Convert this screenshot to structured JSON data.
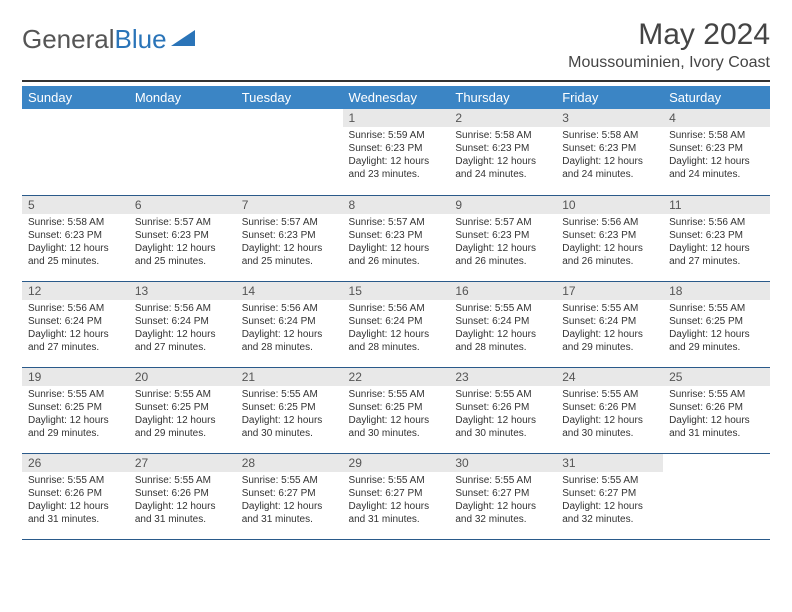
{
  "logo": {
    "text1": "General",
    "text2": "Blue"
  },
  "title": "May 2024",
  "location": "Moussouminien, Ivory Coast",
  "colors": {
    "header_bg": "#3b85c5",
    "daynum_bg": "#e8e8e8",
    "row_border": "#2a5a8a",
    "logo_blue": "#2a74b8"
  },
  "days": [
    "Sunday",
    "Monday",
    "Tuesday",
    "Wednesday",
    "Thursday",
    "Friday",
    "Saturday"
  ],
  "weeks": [
    [
      null,
      null,
      null,
      {
        "n": "1",
        "sr": "5:59 AM",
        "ss": "6:23 PM",
        "dl": "12 hours and 23 minutes."
      },
      {
        "n": "2",
        "sr": "5:58 AM",
        "ss": "6:23 PM",
        "dl": "12 hours and 24 minutes."
      },
      {
        "n": "3",
        "sr": "5:58 AM",
        "ss": "6:23 PM",
        "dl": "12 hours and 24 minutes."
      },
      {
        "n": "4",
        "sr": "5:58 AM",
        "ss": "6:23 PM",
        "dl": "12 hours and 24 minutes."
      }
    ],
    [
      {
        "n": "5",
        "sr": "5:58 AM",
        "ss": "6:23 PM",
        "dl": "12 hours and 25 minutes."
      },
      {
        "n": "6",
        "sr": "5:57 AM",
        "ss": "6:23 PM",
        "dl": "12 hours and 25 minutes."
      },
      {
        "n": "7",
        "sr": "5:57 AM",
        "ss": "6:23 PM",
        "dl": "12 hours and 25 minutes."
      },
      {
        "n": "8",
        "sr": "5:57 AM",
        "ss": "6:23 PM",
        "dl": "12 hours and 26 minutes."
      },
      {
        "n": "9",
        "sr": "5:57 AM",
        "ss": "6:23 PM",
        "dl": "12 hours and 26 minutes."
      },
      {
        "n": "10",
        "sr": "5:56 AM",
        "ss": "6:23 PM",
        "dl": "12 hours and 26 minutes."
      },
      {
        "n": "11",
        "sr": "5:56 AM",
        "ss": "6:23 PM",
        "dl": "12 hours and 27 minutes."
      }
    ],
    [
      {
        "n": "12",
        "sr": "5:56 AM",
        "ss": "6:24 PM",
        "dl": "12 hours and 27 minutes."
      },
      {
        "n": "13",
        "sr": "5:56 AM",
        "ss": "6:24 PM",
        "dl": "12 hours and 27 minutes."
      },
      {
        "n": "14",
        "sr": "5:56 AM",
        "ss": "6:24 PM",
        "dl": "12 hours and 28 minutes."
      },
      {
        "n": "15",
        "sr": "5:56 AM",
        "ss": "6:24 PM",
        "dl": "12 hours and 28 minutes."
      },
      {
        "n": "16",
        "sr": "5:55 AM",
        "ss": "6:24 PM",
        "dl": "12 hours and 28 minutes."
      },
      {
        "n": "17",
        "sr": "5:55 AM",
        "ss": "6:24 PM",
        "dl": "12 hours and 29 minutes."
      },
      {
        "n": "18",
        "sr": "5:55 AM",
        "ss": "6:25 PM",
        "dl": "12 hours and 29 minutes."
      }
    ],
    [
      {
        "n": "19",
        "sr": "5:55 AM",
        "ss": "6:25 PM",
        "dl": "12 hours and 29 minutes."
      },
      {
        "n": "20",
        "sr": "5:55 AM",
        "ss": "6:25 PM",
        "dl": "12 hours and 29 minutes."
      },
      {
        "n": "21",
        "sr": "5:55 AM",
        "ss": "6:25 PM",
        "dl": "12 hours and 30 minutes."
      },
      {
        "n": "22",
        "sr": "5:55 AM",
        "ss": "6:25 PM",
        "dl": "12 hours and 30 minutes."
      },
      {
        "n": "23",
        "sr": "5:55 AM",
        "ss": "6:26 PM",
        "dl": "12 hours and 30 minutes."
      },
      {
        "n": "24",
        "sr": "5:55 AM",
        "ss": "6:26 PM",
        "dl": "12 hours and 30 minutes."
      },
      {
        "n": "25",
        "sr": "5:55 AM",
        "ss": "6:26 PM",
        "dl": "12 hours and 31 minutes."
      }
    ],
    [
      {
        "n": "26",
        "sr": "5:55 AM",
        "ss": "6:26 PM",
        "dl": "12 hours and 31 minutes."
      },
      {
        "n": "27",
        "sr": "5:55 AM",
        "ss": "6:26 PM",
        "dl": "12 hours and 31 minutes."
      },
      {
        "n": "28",
        "sr": "5:55 AM",
        "ss": "6:27 PM",
        "dl": "12 hours and 31 minutes."
      },
      {
        "n": "29",
        "sr": "5:55 AM",
        "ss": "6:27 PM",
        "dl": "12 hours and 31 minutes."
      },
      {
        "n": "30",
        "sr": "5:55 AM",
        "ss": "6:27 PM",
        "dl": "12 hours and 32 minutes."
      },
      {
        "n": "31",
        "sr": "5:55 AM",
        "ss": "6:27 PM",
        "dl": "12 hours and 32 minutes."
      },
      null
    ]
  ],
  "labels": {
    "sunrise": "Sunrise:",
    "sunset": "Sunset:",
    "daylight": "Daylight:"
  }
}
